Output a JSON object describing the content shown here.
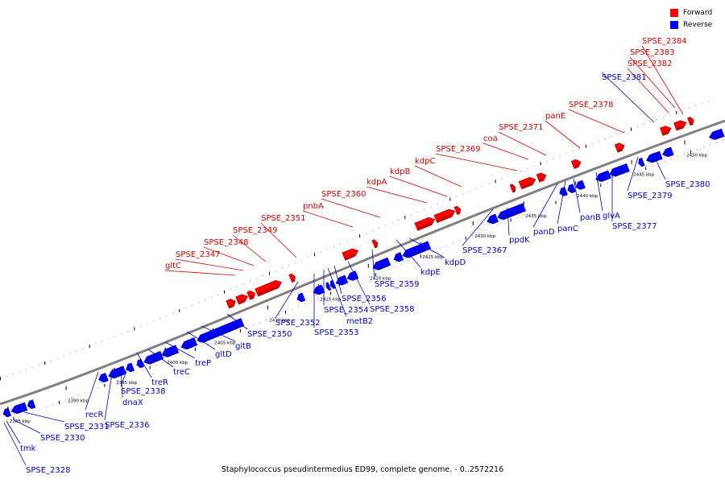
{
  "legend": {
    "forward": {
      "label": "Forward",
      "color": "#ff0000"
    },
    "reverse": {
      "label": "Reverse",
      "color": "#0000ff"
    }
  },
  "caption": "Staphylococcus pseudintermedius ED99, complete genome. - 0..2572216",
  "axis_color": "#808080",
  "label_colors": {
    "forward": "#cc0000",
    "reverse": "#0000cc"
  },
  "kbp_ticks": [
    "2385 kbp",
    "2390 kbp",
    "2395 kbp",
    "2400 kbp",
    "2405 kbp",
    "2410 kbp",
    "2415 kbp",
    "2420 kbp",
    "2425 kbp",
    "2430 kbp",
    "2435 kbp",
    "2440 kbp",
    "2445 kbp",
    "2450 kbp"
  ],
  "forward_labels": [
    "gltC",
    "SPSE_2347",
    "SPSE_2348",
    "SPSE_2349",
    "SPSE_2351",
    "pnbA",
    "SPSE_2360",
    "kdpA",
    "kdpB",
    "kdpC",
    "SPSE_2369",
    "coa",
    "SPSE_2371",
    "panE",
    "SPSE_2378",
    "SPSE_2382",
    "SPSE_2383",
    "SPSE_2384"
  ],
  "reverse_labels": [
    "SPSE_2328",
    "tmk",
    "SPSE_2330",
    "SPSE_2331",
    "recR",
    "SPSE_2336",
    "dnaX",
    "SPSE_2338",
    "treR",
    "treC",
    "treP",
    "gltD",
    "gltB",
    "SPSE_2350",
    "SPSE_2352",
    "SPSE_2353",
    "SPSE_2354",
    "metB2",
    "SPSE_2356",
    "SPSE_2358",
    "SPSE_2359",
    "kdpE",
    "kdpD",
    "SPSE_2367",
    "ppdK",
    "panD",
    "panC",
    "panB",
    "glvA",
    "SPSE_2377",
    "SPSE_2379",
    "SPSE_2380",
    "SPSE_2381"
  ]
}
